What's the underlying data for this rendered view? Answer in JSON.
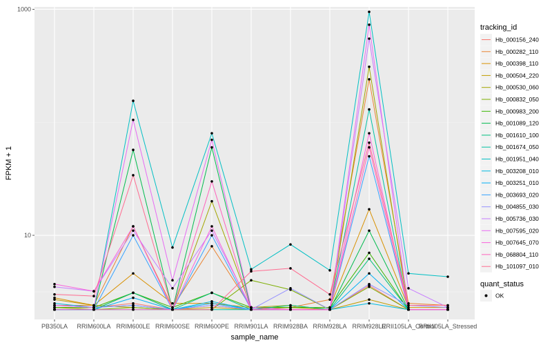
{
  "chart_data": {
    "type": "line",
    "title": "",
    "xlabel": "sample_name",
    "ylabel": "FPKM + 1",
    "y_scale": "log10",
    "ylim": [
      1.8,
      1050
    ],
    "y_ticks": [
      {
        "value": 10,
        "label": "10"
      },
      {
        "value": 1000,
        "label": "1000"
      }
    ],
    "grid": true,
    "panel_background": "#ebebeb",
    "categories": [
      "PB350LA",
      "RRIM600LA",
      "RRIM600LE",
      "RRIM600SE",
      "RRIM600PE",
      "RRIM901LA",
      "RRIM928BA",
      "RRIM928LA",
      "RRIM928LE",
      "RRII105LA_Control",
      "RRII105LA_Stressed"
    ],
    "legend": {
      "title": "tracking_id",
      "placement": "right"
    },
    "shape_legend": {
      "title": "quant_status",
      "items": [
        {
          "label": "OK"
        }
      ]
    },
    "series": [
      {
        "name": "Hb_000156_240",
        "color": "#F8766D",
        "values": [
          2.3,
          2.3,
          2.5,
          2.2,
          2.4,
          2.2,
          2.2,
          2.2,
          3.6,
          2.2,
          2.2
        ]
      },
      {
        "name": "Hb_000282_110",
        "color": "#EA8331",
        "values": [
          2.4,
          2.4,
          12,
          2.3,
          8,
          2.3,
          2.3,
          2.7,
          240,
          2.5,
          2.4
        ]
      },
      {
        "name": "Hb_000398_110",
        "color": "#D89000",
        "values": [
          2.8,
          2.4,
          4.6,
          2.5,
          2.5,
          2.3,
          2.3,
          2.3,
          17,
          2.3,
          2.3
        ]
      },
      {
        "name": "Hb_000504_220",
        "color": "#C09B00",
        "values": [
          2.7,
          2.4,
          2.3,
          2.2,
          2.3,
          2.2,
          2.3,
          2.2,
          2.7,
          2.2,
          2.2
        ]
      },
      {
        "name": "Hb_000530_060",
        "color": "#A3A500",
        "values": [
          2.3,
          2.2,
          3.1,
          2.2,
          20,
          2.3,
          2.4,
          2.2,
          310,
          2.2,
          2.2
        ]
      },
      {
        "name": "Hb_000832_050",
        "color": "#7CAE00",
        "values": [
          2.2,
          2.2,
          2.3,
          2.2,
          2.2,
          4.0,
          3.3,
          2.2,
          3.5,
          2.2,
          2.2
        ]
      },
      {
        "name": "Hb_000983_200",
        "color": "#39B600",
        "values": [
          2.3,
          2.3,
          3.1,
          2.3,
          3.1,
          2.3,
          2.3,
          2.3,
          7.0,
          2.2,
          2.2
        ]
      },
      {
        "name": "Hb_001089_120",
        "color": "#00BB4E",
        "values": [
          2.2,
          2.2,
          57,
          2.2,
          60,
          2.2,
          2.2,
          2.2,
          11,
          2.2,
          2.2
        ]
      },
      {
        "name": "Hb_001610_100",
        "color": "#00BF7D",
        "values": [
          2.2,
          2.2,
          3.1,
          2.2,
          3.1,
          2.2,
          2.4,
          2.2,
          6.2,
          2.2,
          2.2
        ]
      },
      {
        "name": "Hb_001674_050",
        "color": "#00C1A3",
        "values": [
          2.2,
          2.2,
          2.2,
          2.2,
          2.2,
          2.2,
          2.2,
          2.2,
          130,
          2.2,
          2.2
        ]
      },
      {
        "name": "Hb_001951_040",
        "color": "#00BFC4",
        "values": [
          2.2,
          2.2,
          155,
          7.8,
          80,
          5.0,
          8.3,
          4.9,
          950,
          4.6,
          4.3
        ]
      },
      {
        "name": "Hb_003208_010",
        "color": "#00BAE0",
        "values": [
          2.5,
          2.3,
          2.4,
          2.2,
          2.6,
          2.2,
          2.2,
          2.2,
          2.5,
          2.2,
          2.2
        ]
      },
      {
        "name": "Hb_003251_010",
        "color": "#00B0F6",
        "values": [
          2.2,
          2.2,
          2.8,
          2.2,
          2.5,
          2.2,
          2.2,
          2.2,
          4.6,
          2.2,
          2.2
        ]
      },
      {
        "name": "Hb_003693_020",
        "color": "#35A2FF",
        "values": [
          2.2,
          2.2,
          10,
          2.2,
          10,
          2.2,
          2.2,
          2.2,
          50,
          2.2,
          2.2
        ]
      },
      {
        "name": "Hb_004855_030",
        "color": "#9590FF",
        "values": [
          2.4,
          2.3,
          2.4,
          2.2,
          2.4,
          2.2,
          3.4,
          2.2,
          3.7,
          2.4,
          2.3
        ]
      },
      {
        "name": "Hb_005736_030",
        "color": "#C77CFF",
        "values": [
          3.5,
          3.2,
          11,
          3.4,
          11,
          2.3,
          2.2,
          2.2,
          550,
          3.4,
          2.3
        ]
      },
      {
        "name": "Hb_007595_020",
        "color": "#E76BF3",
        "values": [
          2.4,
          2.3,
          105,
          4.0,
          70,
          2.3,
          2.2,
          2.2,
          730,
          2.2,
          2.2
        ]
      },
      {
        "name": "Hb_007645_070",
        "color": "#FA62DB",
        "values": [
          3.7,
          3.2,
          12,
          2.2,
          12,
          2.2,
          2.2,
          2.2,
          80,
          2.2,
          2.2
        ]
      },
      {
        "name": "Hb_068804_110",
        "color": "#FF62BC",
        "values": [
          2.2,
          2.2,
          2.2,
          2.2,
          30,
          2.2,
          2.2,
          2.2,
          60,
          2.2,
          2.2
        ]
      },
      {
        "name": "Hb_101097_010",
        "color": "#FF6C91",
        "values": [
          3.0,
          2.9,
          34,
          2.2,
          2.2,
          4.8,
          5.1,
          3.0,
          66,
          2.4,
          2.4
        ]
      }
    ]
  }
}
